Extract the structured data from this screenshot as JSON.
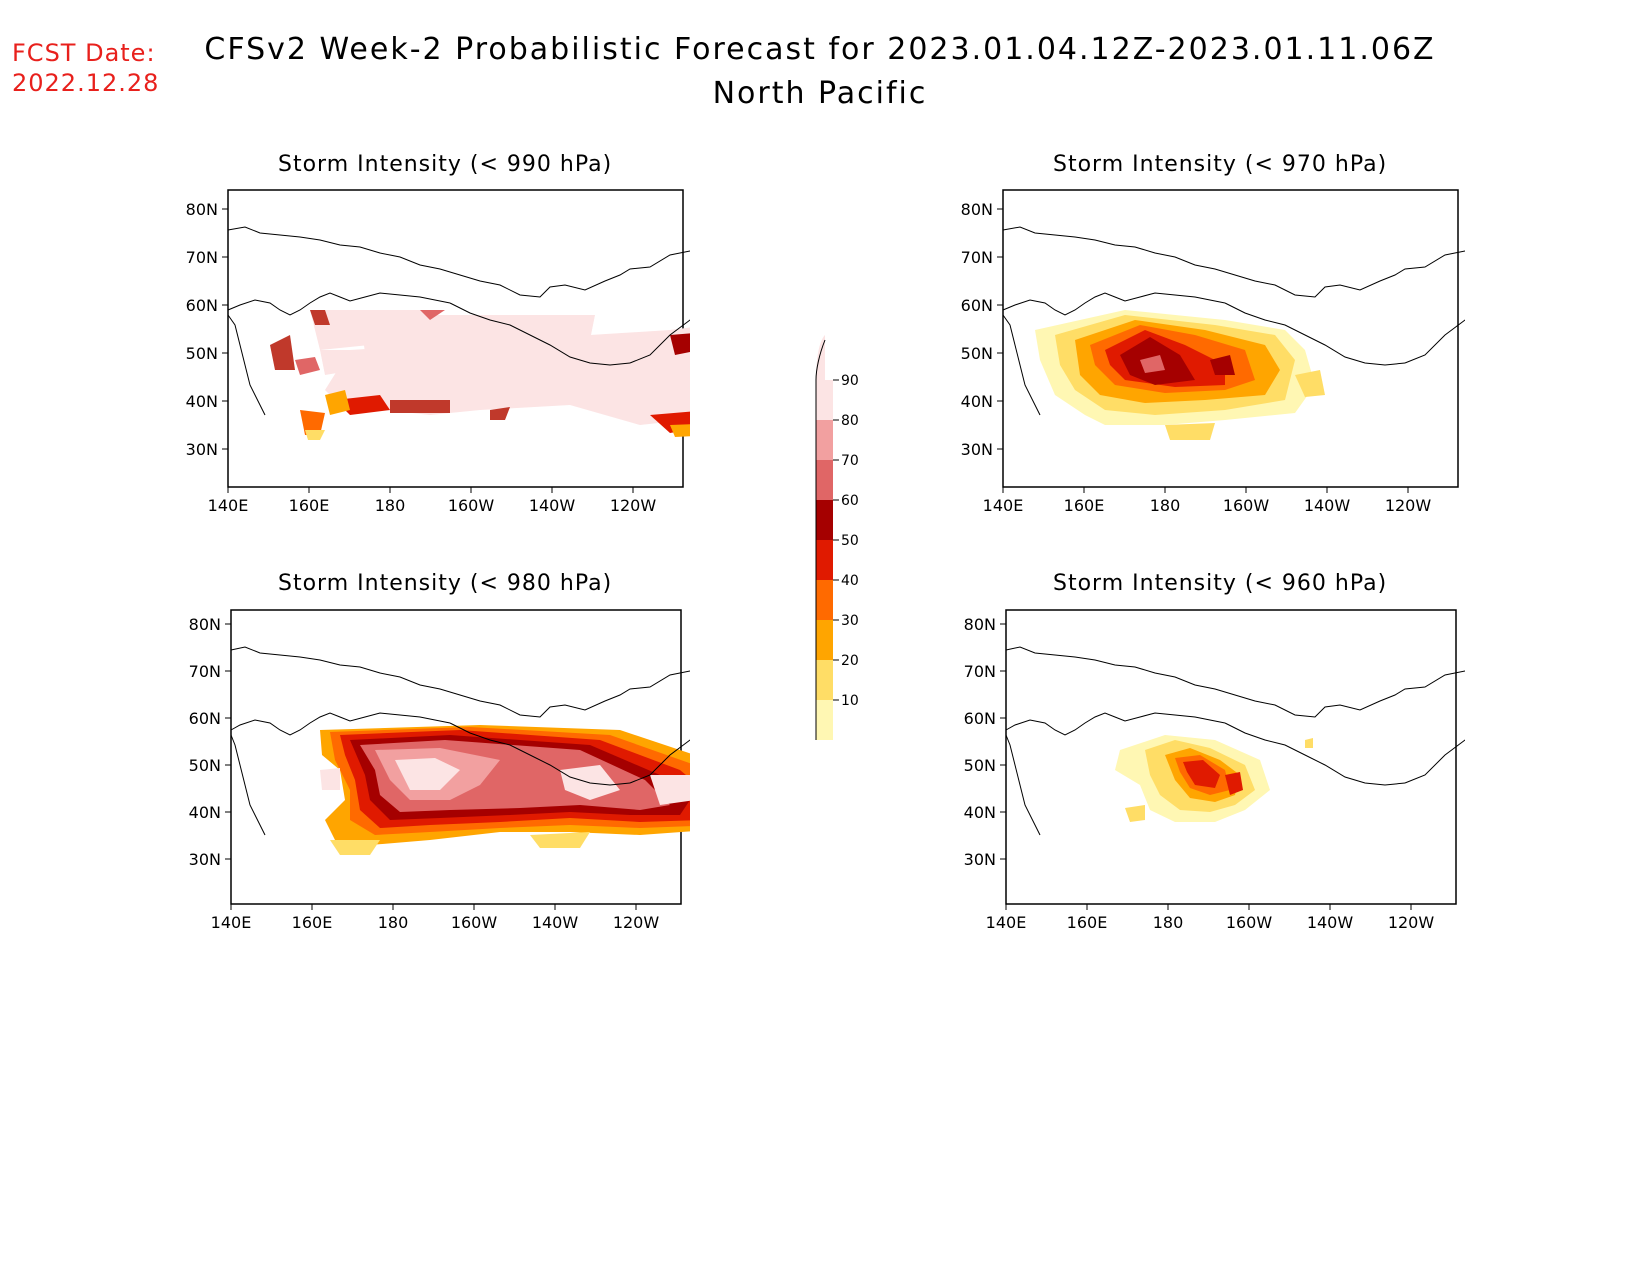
{
  "header": {
    "fcst_label": "FCST Date:",
    "fcst_date": "2022.12.28",
    "title": "CFSv2 Week-2 Probabilistic Forecast for 2023.01.04.12Z-2023.01.11.06Z",
    "subtitle": "North Pacific"
  },
  "axes": {
    "lon_ticks": [
      "140E",
      "160E",
      "180",
      "160W",
      "140W",
      "120W"
    ],
    "lat_ticks": [
      "80N",
      "70N",
      "60N",
      "50N",
      "40N",
      "30N"
    ]
  },
  "panels": [
    {
      "id": "p990",
      "title": "Storm Intensity (< 990 hPa)"
    },
    {
      "id": "p970",
      "title": "Storm Intensity (< 970 hPa)"
    },
    {
      "id": "p980",
      "title": "Storm Intensity (< 980 hPa)"
    },
    {
      "id": "p960",
      "title": "Storm Intensity (< 960 hPa)"
    }
  ],
  "colorbar": {
    "labels": [
      "90",
      "80",
      "70",
      "60",
      "50",
      "40",
      "30",
      "20",
      "10"
    ],
    "colors": [
      "#fce4e4",
      "#f2a0a0",
      "#e06666",
      "#a50000",
      "#e01a00",
      "#ff6a00",
      "#ffa500",
      "#ffdd66",
      "#fff7b3"
    ]
  }
}
